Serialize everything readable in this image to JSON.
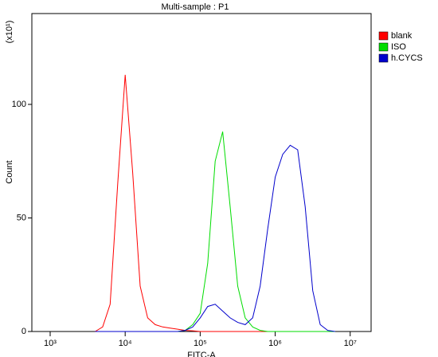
{
  "chart_data": {
    "type": "line",
    "title": "Multi-sample : P1",
    "xlabel": "FITC-A",
    "ylabel": "Count",
    "y_multiplier": "(x10¹)",
    "xscale": "log",
    "xlim": [
      570,
      19000000
    ],
    "ylim": [
      0,
      140
    ],
    "xticks": [
      {
        "value": 1000,
        "label": "10³"
      },
      {
        "value": 10000,
        "label": "10⁴"
      },
      {
        "value": 100000,
        "label": "10⁵"
      },
      {
        "value": 1000000,
        "label": "10⁶"
      },
      {
        "value": 10000000,
        "label": "10⁷"
      }
    ],
    "yticks": [
      0,
      50,
      100
    ],
    "legend": "top-right",
    "x": [
      3981,
      5012,
      6310,
      7943,
      10000,
      12589,
      15849,
      19953,
      25119,
      31623,
      39811,
      50119,
      63096,
      79433,
      100000,
      125893,
      158489,
      199526,
      251189,
      316228,
      398107,
      501187,
      630957,
      794328,
      1000000,
      1258925,
      1584893,
      1995262,
      2511886,
      3162278,
      3981072,
      5011872,
      6309573
    ],
    "series": [
      {
        "name": "blank",
        "color": "#ff0000",
        "values": [
          0,
          2,
          12,
          65,
          113,
          70,
          20,
          6,
          3,
          2,
          1.5,
          1,
          0.5,
          0.3,
          0,
          0,
          0,
          0,
          0,
          0,
          0,
          0,
          0,
          0,
          0,
          0,
          0,
          0,
          0,
          0,
          0,
          0,
          0
        ]
      },
      {
        "name": "ISO",
        "color": "#00dd00",
        "values": [
          0,
          0,
          0,
          0,
          0,
          0,
          0,
          0,
          0,
          0,
          0,
          0,
          0.5,
          3,
          8,
          30,
          75,
          88,
          55,
          20,
          6,
          2,
          0.5,
          0,
          0,
          0,
          0,
          0,
          0,
          0,
          0,
          0,
          0
        ]
      },
      {
        "name": "h.CYCS",
        "color": "#0000cc",
        "values": [
          0,
          0,
          0,
          0,
          0,
          0,
          0,
          0,
          0,
          0,
          0,
          0,
          0.5,
          2,
          6,
          11,
          12,
          9,
          6,
          4,
          3,
          6,
          20,
          45,
          68,
          78,
          82,
          80,
          55,
          18,
          3,
          0.5,
          0
        ]
      }
    ]
  }
}
